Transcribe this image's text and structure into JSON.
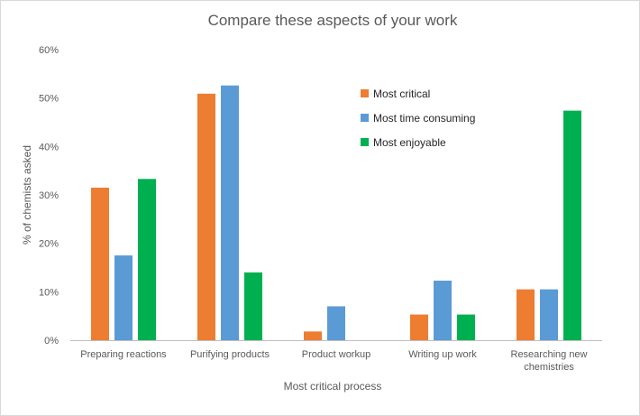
{
  "chart_data": {
    "type": "bar",
    "title": "Compare these aspects of your work",
    "xlabel": "Most critical process",
    "ylabel": "% of chemists asked",
    "categories": [
      [
        "Preparing reactions"
      ],
      [
        "Purifying products"
      ],
      [
        "Product workup"
      ],
      [
        "Writing up work"
      ],
      [
        "Researching new",
        "chemistries"
      ]
    ],
    "series": [
      {
        "name": "Most critical",
        "color": "#ED7D31",
        "values": [
          31.5,
          50.9,
          1.8,
          5.3,
          10.5
        ]
      },
      {
        "name": "Most time consuming",
        "color": "#5B9BD5",
        "values": [
          17.5,
          52.6,
          7.0,
          12.3,
          10.5
        ]
      },
      {
        "name": "Most enjoyable",
        "color": "#00B050",
        "values": [
          33.3,
          14.0,
          0,
          5.3,
          47.4
        ]
      }
    ],
    "ylim": [
      0,
      60
    ],
    "yticks": [
      0,
      10,
      20,
      30,
      40,
      50,
      60
    ],
    "ytick_labels": [
      "0%",
      "10%",
      "20%",
      "30%",
      "40%",
      "50%",
      "60%"
    ],
    "grid": false,
    "legend_position": "top-right"
  }
}
